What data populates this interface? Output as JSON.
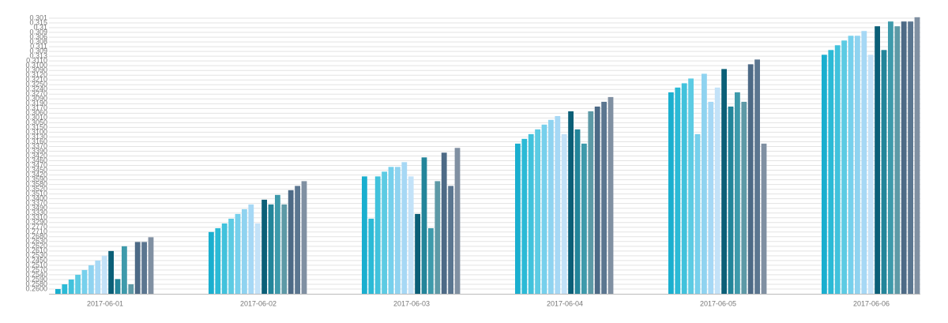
{
  "chart_data": {
    "type": "bar",
    "categories": [
      "2017-06-01",
      "2017-06-02",
      "2017-06-03",
      "2017-06-04",
      "2017-06-05",
      "2017-06-06"
    ],
    "series": [
      {
        "color": "#1aafcf",
        "values": [
          0,
          12,
          23.7,
          30.6,
          41.4,
          49.3
        ]
      },
      {
        "color": "#2bbad6",
        "values": [
          1,
          12.8,
          14.8,
          31.6,
          42.4,
          50.3
        ]
      },
      {
        "color": "#41c2dc",
        "values": [
          2,
          13.8,
          23.7,
          32.6,
          43.3,
          51.3
        ]
      },
      {
        "color": "#5ccbe3",
        "values": [
          3,
          14.8,
          24.7,
          33.6,
          44.3,
          52.3
        ]
      },
      {
        "color": "#76d0ec",
        "values": [
          4,
          15.8,
          25.7,
          34.6,
          32.6,
          53.3
        ]
      },
      {
        "color": "#8fd3f0",
        "values": [
          5,
          16.8,
          25.7,
          35.6,
          45.3,
          53.3
        ]
      },
      {
        "color": "#a6d8f5",
        "values": [
          6,
          17.8,
          26.7,
          36.4,
          39.4,
          54.3
        ]
      },
      {
        "color": "#c3e2f8",
        "values": [
          7,
          13.8,
          23.7,
          32.6,
          42.4,
          49.3
        ]
      },
      {
        "color": "#0b5f77",
        "values": [
          8,
          18.8,
          15.8,
          37.4,
          46.3,
          55.3
        ]
      },
      {
        "color": "#23859a",
        "values": [
          2.1,
          17.8,
          27.7,
          33.6,
          38.4,
          50.3
        ]
      },
      {
        "color": "#3e9aab",
        "values": [
          9,
          19.8,
          12.8,
          30.6,
          41.4,
          56.3
        ]
      },
      {
        "color": "#5d99a6",
        "values": [
          1,
          17.8,
          22.7,
          37.4,
          39.4,
          55.3
        ]
      },
      {
        "color": "#4d6a86",
        "values": [
          9.9,
          20.8,
          28.7,
          38.4,
          47.3,
          56.3
        ]
      },
      {
        "color": "#5b7690",
        "values": [
          9.9,
          21.7,
          21.7,
          39.4,
          48.3,
          56.3
        ]
      },
      {
        "color": "#8090a2",
        "values": [
          10.9,
          22.7,
          29.7,
          40.4,
          30.6,
          57.2
        ]
      }
    ],
    "ylim": [
      -1,
      57.5
    ],
    "yticks": [
      {
        "value": 0,
        "label": "0.2600"
      },
      {
        "value": 1,
        "label": "0.2580"
      },
      {
        "value": 2,
        "label": "0.2590"
      },
      {
        "value": 3,
        "label": "0.2540"
      },
      {
        "value": 4,
        "label": "0.2570"
      },
      {
        "value": 5,
        "label": "0.2510"
      },
      {
        "value": 6,
        "label": "0.2450"
      },
      {
        "value": 7,
        "label": "0.2530"
      },
      {
        "value": 8,
        "label": "0.2610"
      },
      {
        "value": 9,
        "label": "0.2620"
      },
      {
        "value": 10,
        "label": "0.2630"
      },
      {
        "value": 11,
        "label": "0.2680"
      },
      {
        "value": 12,
        "label": "0.2710"
      },
      {
        "value": 13,
        "label": "0.2770"
      },
      {
        "value": 14,
        "label": "0.3290"
      },
      {
        "value": 15,
        "label": "0.3310"
      },
      {
        "value": 16,
        "label": "0.3330"
      },
      {
        "value": 17,
        "label": "0.3490"
      },
      {
        "value": 18,
        "label": "0.3370"
      },
      {
        "value": 19,
        "label": "0.3400"
      },
      {
        "value": 20,
        "label": "0.3510"
      },
      {
        "value": 21,
        "label": "0.3520"
      },
      {
        "value": 22,
        "label": "0.3580"
      },
      {
        "value": 23,
        "label": "0.3590"
      },
      {
        "value": 24,
        "label": "0.3420"
      },
      {
        "value": 25,
        "label": "0.3450"
      },
      {
        "value": 26,
        "label": "0.3470"
      },
      {
        "value": 27,
        "label": "0.3460"
      },
      {
        "value": 28,
        "label": "0.3420"
      },
      {
        "value": 29,
        "label": "0.3390"
      },
      {
        "value": 30,
        "label": "0.3370"
      },
      {
        "value": 31,
        "label": "0.3160"
      },
      {
        "value": 32,
        "label": "0.3130"
      },
      {
        "value": 33,
        "label": "0.3100"
      },
      {
        "value": 34,
        "label": "0.3150"
      },
      {
        "value": 35,
        "label": "0.3050"
      },
      {
        "value": 36,
        "label": "0.3010"
      },
      {
        "value": 37,
        "label": "0.3060"
      },
      {
        "value": 38,
        "label": "0.3170"
      },
      {
        "value": 39,
        "label": "0.3190"
      },
      {
        "value": 40,
        "label": "0.3090"
      },
      {
        "value": 41,
        "label": "0.3270"
      },
      {
        "value": 42,
        "label": "0.3240"
      },
      {
        "value": 43,
        "label": "0.3250"
      },
      {
        "value": 44,
        "label": "0.3210"
      },
      {
        "value": 45,
        "label": "0.3120"
      },
      {
        "value": 46,
        "label": "0.3090"
      },
      {
        "value": 47,
        "label": "0.3100"
      },
      {
        "value": 48,
        "label": "0.3110"
      },
      {
        "value": 49,
        "label": "0.313"
      },
      {
        "value": 50,
        "label": "0.309"
      },
      {
        "value": 51,
        "label": "0.311"
      },
      {
        "value": 52,
        "label": "0.308"
      },
      {
        "value": 53,
        "label": "0.306"
      },
      {
        "value": 54,
        "label": "0.309"
      },
      {
        "value": 55,
        "label": "0.31"
      },
      {
        "value": 56,
        "label": "0.315"
      },
      {
        "value": 57,
        "label": "0.301"
      }
    ],
    "grid": true
  }
}
